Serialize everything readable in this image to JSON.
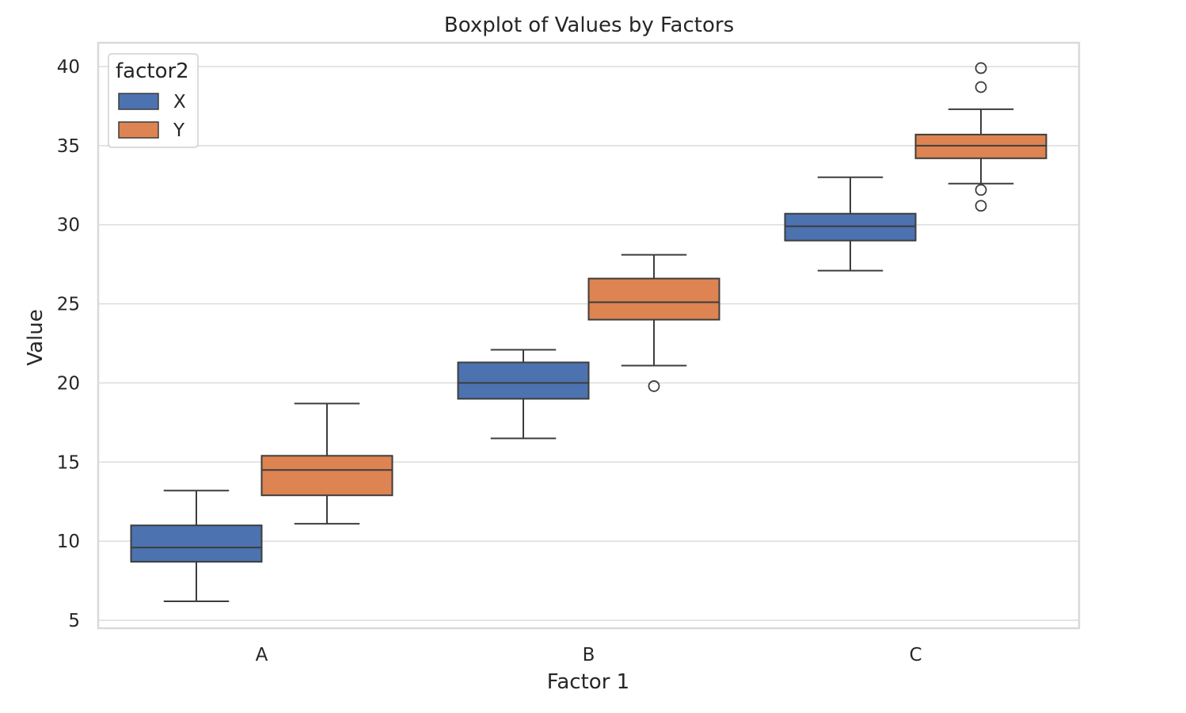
{
  "chart_data": {
    "type": "boxplot",
    "title": "Boxplot of Values by Factors",
    "xlabel": "Factor 1",
    "ylabel": "Value",
    "categories": [
      "A",
      "B",
      "C"
    ],
    "ylim": [
      4.5,
      41.5
    ],
    "yticks": [
      5,
      10,
      15,
      20,
      25,
      30,
      35,
      40
    ],
    "grid": true,
    "legend": {
      "title": "factor2",
      "position": "top-left"
    },
    "series": [
      {
        "name": "X",
        "color": "#4c72b0",
        "boxes": [
          {
            "whisker_low": 6.2,
            "q1": 8.7,
            "median": 9.6,
            "q3": 11.0,
            "whisker_high": 13.2,
            "outliers": []
          },
          {
            "whisker_low": 16.5,
            "q1": 19.0,
            "median": 20.0,
            "q3": 21.3,
            "whisker_high": 22.1,
            "outliers": []
          },
          {
            "whisker_low": 27.1,
            "q1": 29.0,
            "median": 29.9,
            "q3": 30.7,
            "whisker_high": 33.0,
            "outliers": []
          }
        ]
      },
      {
        "name": "Y",
        "color": "#dd8452",
        "boxes": [
          {
            "whisker_low": 11.1,
            "q1": 12.9,
            "median": 14.5,
            "q3": 15.4,
            "whisker_high": 18.7,
            "outliers": []
          },
          {
            "whisker_low": 21.1,
            "q1": 24.0,
            "median": 25.1,
            "q3": 26.6,
            "whisker_high": 28.1,
            "outliers": [
              19.8
            ]
          },
          {
            "whisker_low": 32.6,
            "q1": 34.2,
            "median": 35.0,
            "q3": 35.7,
            "whisker_high": 37.3,
            "outliers": [
              31.2,
              32.2,
              38.7,
              39.9
            ]
          }
        ]
      }
    ]
  }
}
